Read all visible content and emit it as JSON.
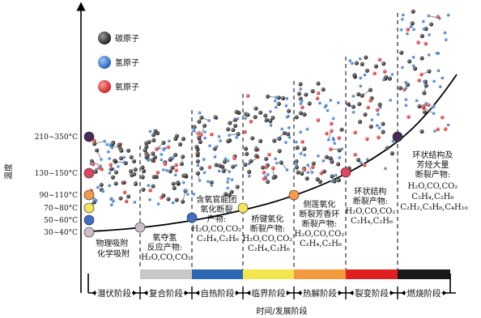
{
  "legend": [
    {
      "label": "碳原子",
      "color": "#2b2b2b"
    },
    {
      "label": "氢原子",
      "color": "#2f79d3"
    },
    {
      "label": "氧原子",
      "color": "#e33a3a"
    }
  ],
  "y_axis": {
    "label": "温度",
    "ticks": [
      {
        "label": "210~350°C",
        "color": "#4a2a57"
      },
      {
        "label": "130~150°C",
        "color": "#e0455d"
      },
      {
        "label": "90~110°C",
        "color": "#f39a4b"
      },
      {
        "label": "70~80°C",
        "color": "#f4e55a"
      },
      {
        "label": "50~60°C",
        "color": "#3d6fc4"
      },
      {
        "label": "30~40°C",
        "color": "#cdbcc9"
      }
    ]
  },
  "x_axis": {
    "label": "时间/发展阶段"
  },
  "stages": [
    {
      "name": "潜伏阶段",
      "color": "#ffffff"
    },
    {
      "name": "复合阶段",
      "color": "#c8c8c8"
    },
    {
      "name": "自热阶段",
      "color": "#2c67b4"
    },
    {
      "name": "临界阶段",
      "color": "#f2e64e"
    },
    {
      "name": "热解阶段",
      "color": "#f39a3e"
    },
    {
      "name": "裂变阶段",
      "color": "#e02020"
    },
    {
      "name": "燃烧阶段",
      "color": "#1a1a1a"
    }
  ],
  "descriptions": [
    [
      "物理吸附",
      "化学吸附"
    ],
    [
      "氧夺氢",
      "反应产物:",
      "H₂O,CO,CO₂"
    ],
    [
      "含氧官能团",
      "氧化断裂",
      "产物:",
      "H₂O,CO,CO₂",
      "C₂H₄,C₂H₆"
    ],
    [
      "桥键氧化",
      "断裂产物:",
      "H₂O,CO,CO₂",
      "C₂H₄,C₂H₆"
    ],
    [
      "侧莲氧化",
      "断裂芳香环",
      "断裂产物:",
      "H₂O,CO,CO₂",
      "C₂H₄,C₂H₆"
    ],
    [
      "环状结构",
      "断裂产物:",
      "H₂O,CO,CO₂",
      "C₂H₄,C₂H₆"
    ],
    [
      "环状结构及",
      "芳烃大量",
      "断裂产物:",
      "H₂O,CO,CO₂",
      "C₂H₄,C₂H₆",
      "C₂H₂,C₃H₈,C₄H₁₀"
    ]
  ]
}
